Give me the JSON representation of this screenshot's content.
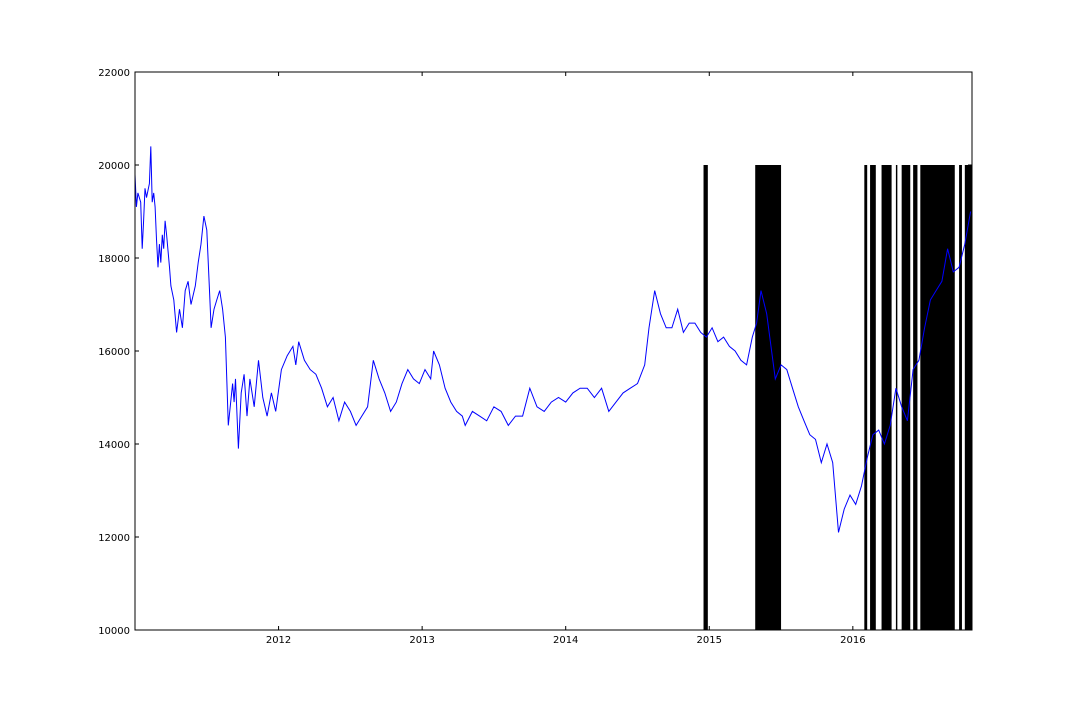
{
  "chart_data": {
    "type": "line",
    "title": "",
    "xlabel": "",
    "ylabel": "",
    "xlim": [
      2011.0,
      2016.83
    ],
    "ylim": [
      10000,
      22000
    ],
    "x_ticks": [
      2012,
      2013,
      2014,
      2015,
      2016
    ],
    "x_tick_labels": [
      "2012",
      "2013",
      "2014",
      "2015",
      "2016"
    ],
    "y_ticks": [
      10000,
      12000,
      14000,
      16000,
      18000,
      20000,
      22000
    ],
    "y_tick_labels": [
      "10000",
      "12000",
      "14000",
      "16000",
      "18000",
      "20000",
      "22000"
    ],
    "grid": false,
    "legend": "none",
    "series": [
      {
        "kind": "line",
        "color": "#0000ff",
        "x": [
          2011.0,
          2011.01,
          2011.02,
          2011.04,
          2011.05,
          2011.06,
          2011.07,
          2011.08,
          2011.1,
          2011.11,
          2011.12,
          2011.13,
          2011.14,
          2011.15,
          2011.16,
          2011.17,
          2011.18,
          2011.19,
          2011.2,
          2011.21,
          2011.22,
          2011.24,
          2011.25,
          2011.27,
          2011.29,
          2011.31,
          2011.33,
          2011.35,
          2011.37,
          2011.39,
          2011.42,
          2011.44,
          2011.46,
          2011.48,
          2011.5,
          2011.52,
          2011.53,
          2011.55,
          2011.57,
          2011.59,
          2011.61,
          2011.63,
          2011.65,
          2011.68,
          2011.69,
          2011.7,
          2011.72,
          2011.74,
          2011.76,
          2011.78,
          2011.8,
          2011.83,
          2011.86,
          2011.89,
          2011.92,
          2011.95,
          2011.98,
          2012.02,
          2012.06,
          2012.1,
          2012.12,
          2012.14,
          2012.18,
          2012.22,
          2012.26,
          2012.3,
          2012.34,
          2012.38,
          2012.42,
          2012.46,
          2012.5,
          2012.54,
          2012.58,
          2012.62,
          2012.66,
          2012.7,
          2012.74,
          2012.78,
          2012.82,
          2012.86,
          2012.9,
          2012.94,
          2012.98,
          2013.02,
          2013.06,
          2013.08,
          2013.12,
          2013.16,
          2013.2,
          2013.24,
          2013.28,
          2013.3,
          2013.35,
          2013.4,
          2013.45,
          2013.5,
          2013.55,
          2013.6,
          2013.65,
          2013.7,
          2013.75,
          2013.8,
          2013.85,
          2013.9,
          2013.95,
          2014.0,
          2014.05,
          2014.1,
          2014.15,
          2014.2,
          2014.25,
          2014.3,
          2014.35,
          2014.4,
          2014.45,
          2014.5,
          2014.55,
          2014.58,
          2014.62,
          2014.66,
          2014.7,
          2014.74,
          2014.78,
          2014.82,
          2014.86,
          2014.9,
          2014.94,
          2014.98,
          2015.02,
          2015.06,
          2015.1,
          2015.14,
          2015.18,
          2015.22,
          2015.26,
          2015.3,
          2015.33,
          2015.36,
          2015.4,
          2015.43,
          2015.46,
          2015.5,
          2015.54,
          2015.58,
          2015.62,
          2015.66,
          2015.7,
          2015.74,
          2015.78,
          2015.82,
          2015.86,
          2015.9,
          2015.94,
          2015.98,
          2016.02,
          2016.06,
          2016.1,
          2016.14,
          2016.18,
          2016.22,
          2016.26,
          2016.3,
          2016.34,
          2016.38,
          2016.42,
          2016.46,
          2016.5,
          2016.54,
          2016.58,
          2016.62,
          2016.66,
          2016.7,
          2016.74,
          2016.78,
          2016.82
        ],
        "y": [
          19800,
          19100,
          19400,
          19200,
          18200,
          18800,
          19500,
          19300,
          19600,
          20400,
          19200,
          19400,
          19100,
          18400,
          17800,
          18300,
          17900,
          18500,
          18200,
          18800,
          18500,
          17800,
          17400,
          17100,
          16400,
          16900,
          16500,
          17300,
          17500,
          17000,
          17400,
          17900,
          18300,
          18900,
          18600,
          17200,
          16500,
          16900,
          17100,
          17300,
          16900,
          16300,
          14400,
          15300,
          14900,
          15400,
          13900,
          15100,
          15500,
          14600,
          15400,
          14800,
          15800,
          15000,
          14600,
          15100,
          14700,
          15600,
          15900,
          16100,
          15700,
          16200,
          15800,
          15600,
          15500,
          15200,
          14800,
          15000,
          14500,
          14900,
          14700,
          14400,
          14600,
          14800,
          15800,
          15400,
          15100,
          14700,
          14900,
          15300,
          15600,
          15400,
          15300,
          15600,
          15400,
          16000,
          15700,
          15200,
          14900,
          14700,
          14600,
          14400,
          14700,
          14600,
          14500,
          14800,
          14700,
          14400,
          14600,
          14600,
          15200,
          14800,
          14700,
          14900,
          15000,
          14900,
          15100,
          15200,
          15200,
          15000,
          15200,
          14700,
          14900,
          15100,
          15200,
          15300,
          15700,
          16500,
          17300,
          16800,
          16500,
          16500,
          16900,
          16400,
          16600,
          16600,
          16400,
          16300,
          16500,
          16200,
          16300,
          16100,
          16000,
          15800,
          15700,
          16300,
          16600,
          17300,
          16800,
          16100,
          15400,
          15700,
          15600,
          15200,
          14800,
          14500,
          14200,
          14100,
          13600,
          14000,
          13600,
          12100,
          12600,
          12900,
          12700,
          13100,
          13700,
          14200,
          14300,
          14000,
          14400,
          15200,
          14800,
          14500,
          15600,
          15800,
          16500,
          17100,
          17300,
          17500,
          18200,
          17700,
          17800,
          18300,
          19000
        ]
      },
      {
        "kind": "vertical-bars",
        "color": "#000000",
        "bottom": 10000,
        "top": 20000,
        "spans": [
          [
            2014.96,
            2014.99
          ],
          [
            2015.32,
            2015.5
          ],
          [
            2016.08,
            2016.1
          ],
          [
            2016.12,
            2016.16
          ],
          [
            2016.2,
            2016.27
          ],
          [
            2016.3,
            2016.31
          ],
          [
            2016.34,
            2016.4
          ],
          [
            2016.42,
            2016.45
          ],
          [
            2016.47,
            2016.71
          ],
          [
            2016.74,
            2016.76
          ],
          [
            2016.78,
            2016.83
          ]
        ]
      }
    ]
  }
}
